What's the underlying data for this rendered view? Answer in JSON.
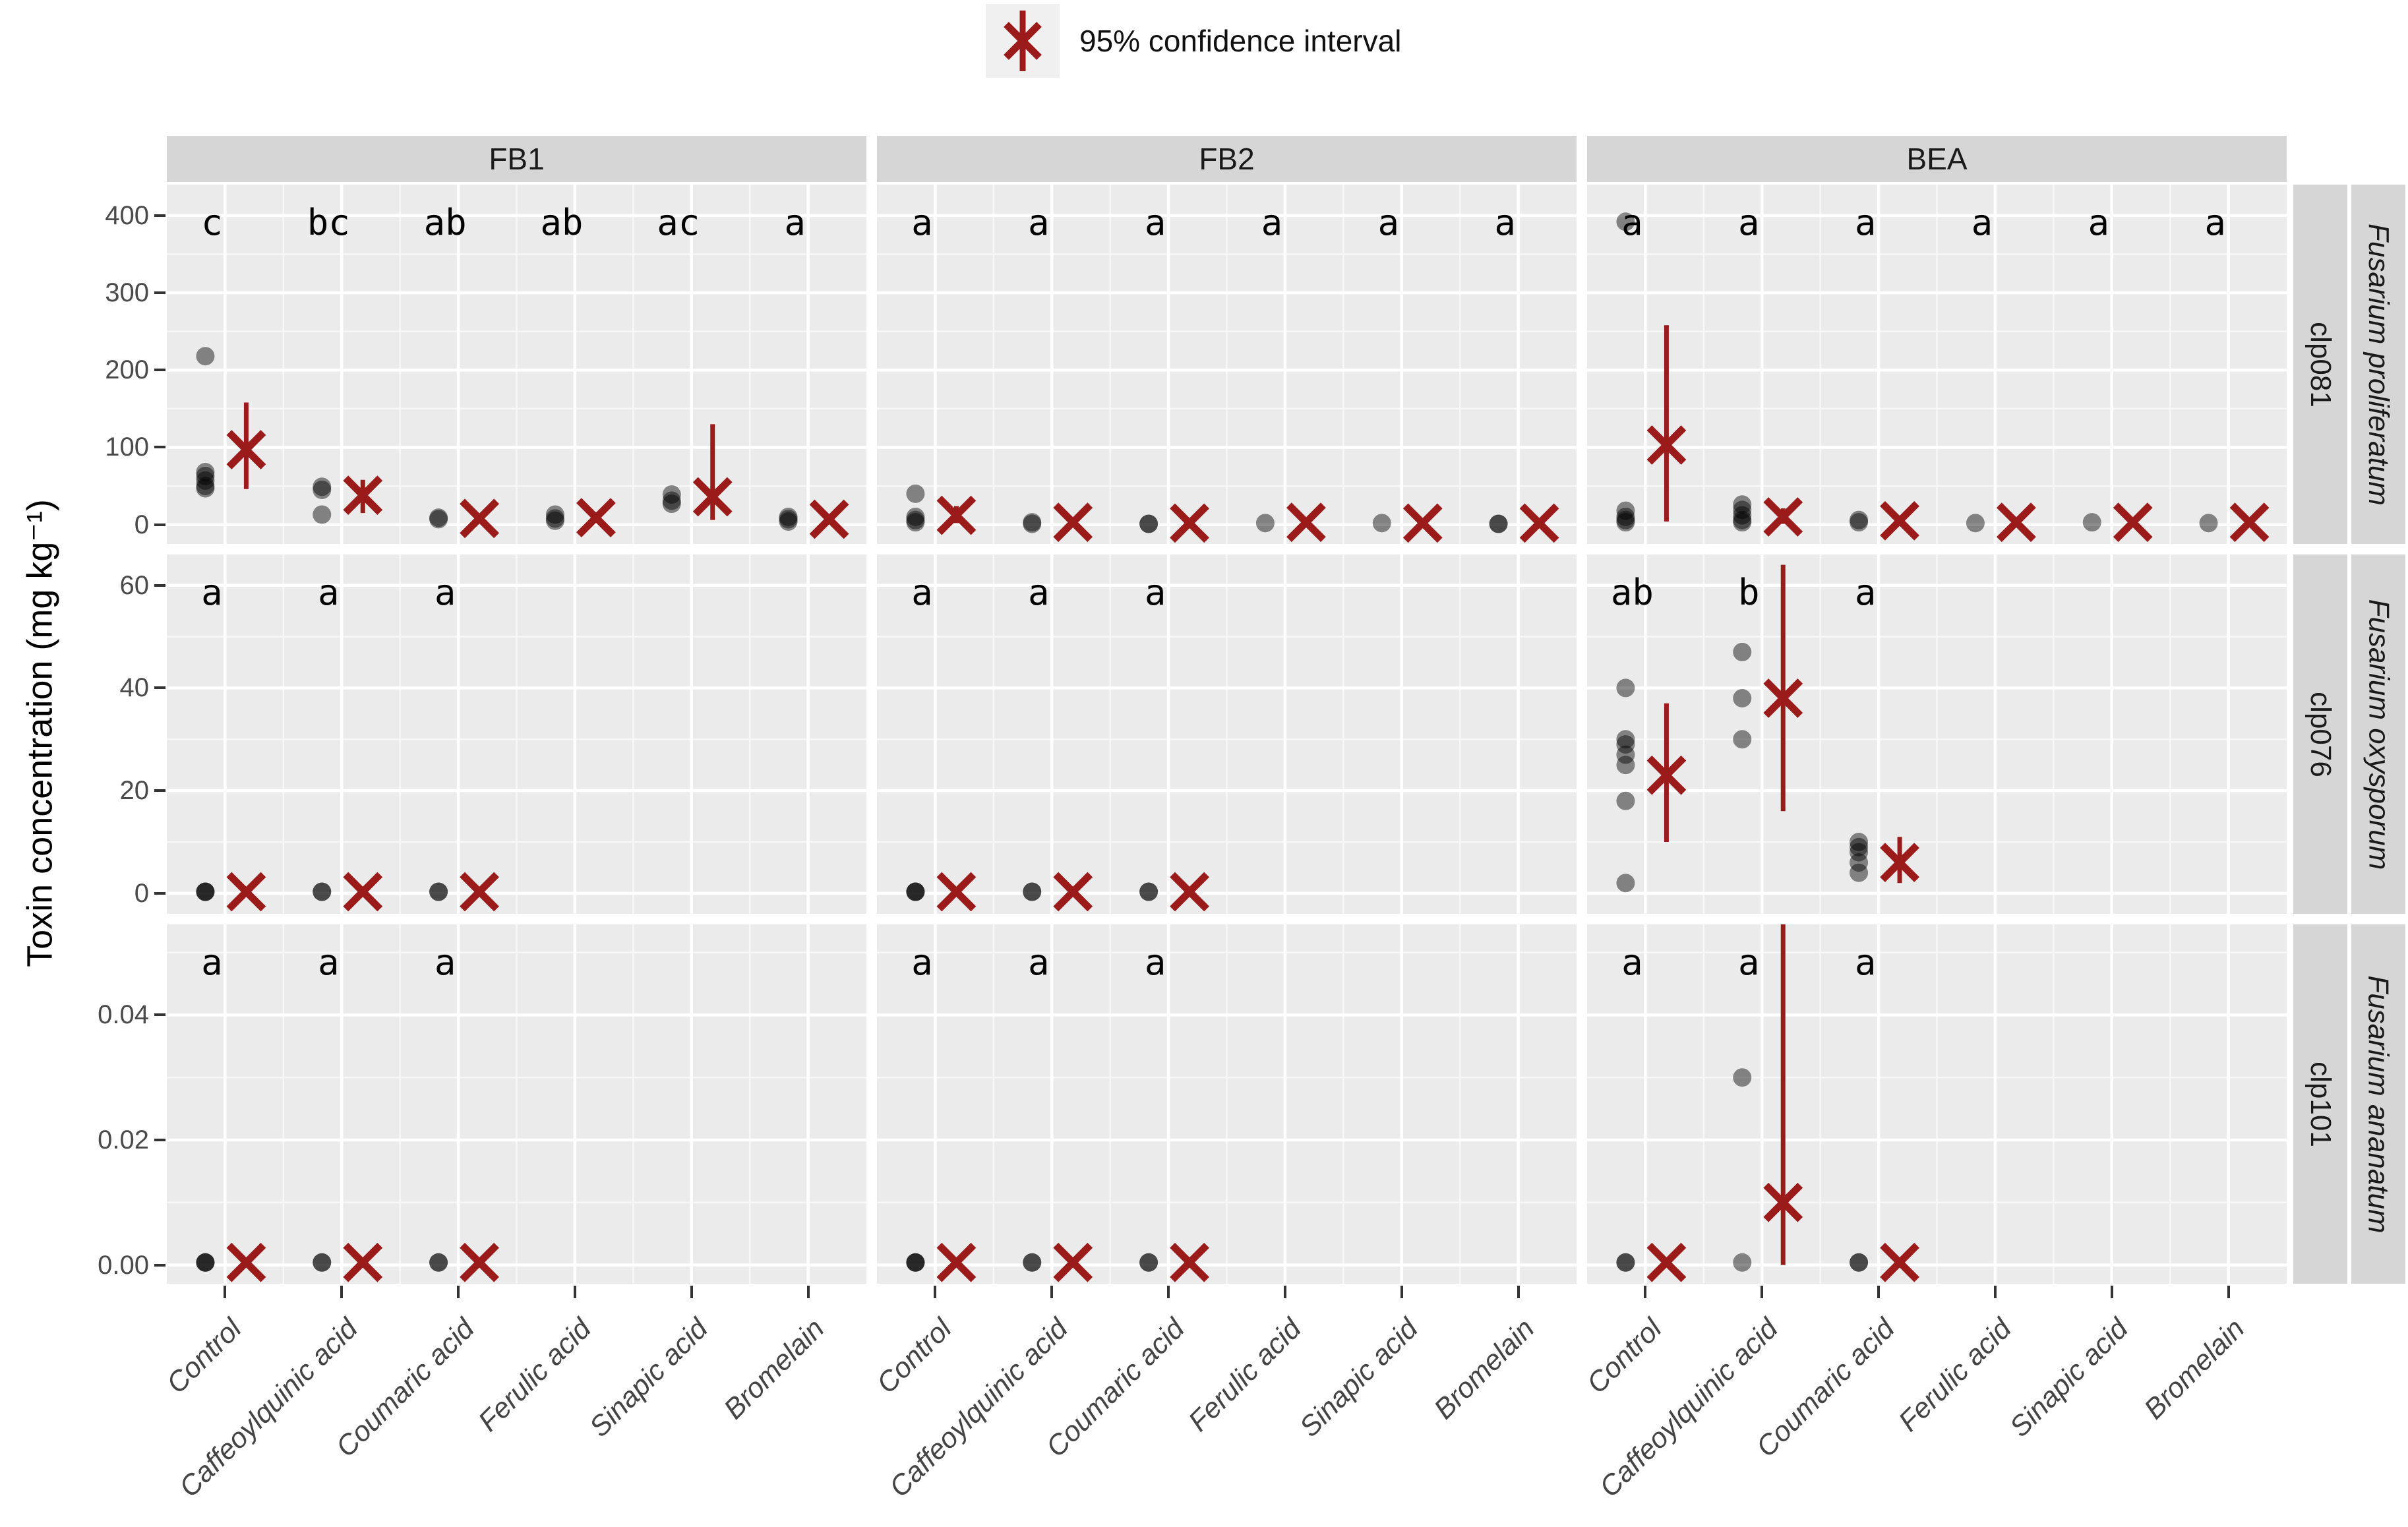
{
  "figure": {
    "legend_label": "95% confidence interval",
    "y_axis_label": "Toxin concentration (mg kg⁻¹)"
  },
  "colors": {
    "panel_bg": "#EBEBEB",
    "strip_bg": "#D6D6D6",
    "grid_major": "#FFFFFF",
    "grid_minor": "#F7F7F7",
    "point": "rgba(0,0,0,0.45)",
    "accent_red": "#9B1B1B",
    "axis_text": "#4A4A4A",
    "legend_key_bg": "#F0F0F0"
  },
  "chart_data": {
    "type": "scatter",
    "title": "",
    "ylabel": "Toxin concentration (mg kg⁻¹)",
    "legend": [
      "95% confidence interval"
    ],
    "legend_position": "top",
    "grid": true,
    "x_categories": [
      "Control",
      "Caffeoylquinic acid",
      "Coumaric acid",
      "Ferulic acid",
      "Sinapic acid",
      "Bromelain"
    ],
    "col_facets": [
      "FB1",
      "FB2",
      "BEA"
    ],
    "row_facets": [
      {
        "strain": "clp081",
        "species": "Fusarium proliferatum",
        "ylim": [
          -25,
          440
        ],
        "ticks": [
          0,
          100,
          200,
          300,
          400
        ],
        "tick_labels": [
          "0",
          "100",
          "200",
          "300",
          "400"
        ],
        "minor": [
          50,
          150,
          250,
          350
        ]
      },
      {
        "strain": "clp076",
        "species": "Fusarium oxysporum",
        "ylim": [
          -4,
          66
        ],
        "ticks": [
          0,
          20,
          40,
          60
        ],
        "tick_labels": [
          "0",
          "20",
          "40",
          "60"
        ],
        "minor": [
          10,
          30,
          50
        ]
      },
      {
        "strain": "clp101",
        "species": "Fusarium ananatum",
        "ylim": [
          -0.003,
          0.0545
        ],
        "ticks": [
          0,
          0.02,
          0.04
        ],
        "tick_labels": [
          "0.00",
          "0.02",
          "0.04"
        ],
        "minor": [
          0.01,
          0.03,
          0.05
        ]
      }
    ],
    "panels": [
      {
        "row": 0,
        "col": 0,
        "groups": [
          {
            "cat": 0,
            "letter": "c",
            "points": [
              218,
              68,
              63,
              57,
              50,
              47
            ],
            "mean": 97,
            "ci": [
              46,
              158
            ]
          },
          {
            "cat": 1,
            "letter": "bc",
            "points": [
              49,
              45,
              13
            ],
            "mean": 38,
            "ci": [
              15,
              58
            ]
          },
          {
            "cat": 2,
            "letter": "ab",
            "points": [
              9,
              7
            ],
            "mean": 8,
            "ci": [
              3,
              14
            ]
          },
          {
            "cat": 3,
            "letter": "ab",
            "points": [
              13,
              8,
              5
            ],
            "mean": 9,
            "ci": [
              3,
              16
            ]
          },
          {
            "cat": 4,
            "letter": "ac",
            "points": [
              39,
              31,
              27
            ],
            "mean": 36,
            "ci": [
              6,
              130
            ]
          },
          {
            "cat": 5,
            "letter": "a",
            "points": [
              10,
              7,
              4
            ],
            "mean": 7,
            "ci": [
              2,
              13
            ]
          }
        ]
      },
      {
        "row": 0,
        "col": 1,
        "groups": [
          {
            "cat": 0,
            "letter": "a",
            "points": [
              40,
              10,
              6,
              3
            ],
            "mean": 12,
            "ci": [
              2,
              24
            ]
          },
          {
            "cat": 1,
            "letter": "a",
            "points": [
              3,
              1
            ],
            "mean": 3,
            "ci": [
              0,
              7
            ]
          },
          {
            "cat": 2,
            "letter": "a",
            "points": [
              1,
              1
            ],
            "mean": 2,
            "ci": [
              0,
              5
            ]
          },
          {
            "cat": 3,
            "letter": "a",
            "points": [
              2
            ],
            "mean": 3,
            "ci": [
              0,
              6
            ]
          },
          {
            "cat": 4,
            "letter": "a",
            "points": [
              2
            ],
            "mean": 2,
            "ci": [
              0,
              5
            ]
          },
          {
            "cat": 5,
            "letter": "a",
            "points": [
              1,
              1
            ],
            "mean": 2,
            "ci": [
              0,
              5
            ]
          }
        ]
      },
      {
        "row": 0,
        "col": 2,
        "groups": [
          {
            "cat": 0,
            "letter": "a",
            "points": [
              392,
              18,
              10,
              6,
              3
            ],
            "mean": 103,
            "ci": [
              4,
              258
            ]
          },
          {
            "cat": 1,
            "letter": "a",
            "points": [
              26,
              19,
              12,
              6,
              3
            ],
            "mean": 10,
            "ci": [
              1,
              21
            ]
          },
          {
            "cat": 2,
            "letter": "a",
            "points": [
              6,
              3
            ],
            "mean": 5,
            "ci": [
              1,
              10
            ]
          },
          {
            "cat": 3,
            "letter": "a",
            "points": [
              2
            ],
            "mean": 3,
            "ci": [
              0,
              6
            ]
          },
          {
            "cat": 4,
            "letter": "a",
            "points": [
              3
            ],
            "mean": 3,
            "ci": [
              0,
              6
            ]
          },
          {
            "cat": 5,
            "letter": "a",
            "points": [
              2
            ],
            "mean": 3,
            "ci": [
              0,
              6
            ]
          }
        ]
      },
      {
        "row": 1,
        "col": 0,
        "groups": [
          {
            "cat": 0,
            "letter": "a",
            "points": [
              0.3,
              0.3,
              0.3
            ],
            "mean": 0.3,
            "ci": null
          },
          {
            "cat": 1,
            "letter": "a",
            "points": [
              0.3,
              0.3
            ],
            "mean": 0.3,
            "ci": null
          },
          {
            "cat": 2,
            "letter": "a",
            "points": [
              0.3,
              0.3
            ],
            "mean": 0.3,
            "ci": null
          }
        ]
      },
      {
        "row": 1,
        "col": 1,
        "groups": [
          {
            "cat": 0,
            "letter": "a",
            "points": [
              0.3,
              0.3,
              0.3
            ],
            "mean": 0.3,
            "ci": null
          },
          {
            "cat": 1,
            "letter": "a",
            "points": [
              0.3,
              0.3
            ],
            "mean": 0.3,
            "ci": null
          },
          {
            "cat": 2,
            "letter": "a",
            "points": [
              0.3,
              0.3
            ],
            "mean": 0.3,
            "ci": null
          }
        ]
      },
      {
        "row": 1,
        "col": 2,
        "groups": [
          {
            "cat": 0,
            "letter": "ab",
            "points": [
              40,
              30,
              29,
              27,
              25,
              18,
              2
            ],
            "mean": 23,
            "ci": [
              10,
              37
            ]
          },
          {
            "cat": 1,
            "letter": "b",
            "points": [
              47,
              38,
              30
            ],
            "mean": 38,
            "ci": [
              16,
              64
            ]
          },
          {
            "cat": 2,
            "letter": "a",
            "points": [
              10,
              9,
              8,
              6,
              4
            ],
            "mean": 6,
            "ci": [
              2,
              11
            ]
          }
        ]
      },
      {
        "row": 2,
        "col": 0,
        "groups": [
          {
            "cat": 0,
            "letter": "a",
            "points": [
              0.0004,
              0.0004,
              0.0004
            ],
            "mean": 0.0004,
            "ci": null
          },
          {
            "cat": 1,
            "letter": "a",
            "points": [
              0.0004,
              0.0004
            ],
            "mean": 0.0004,
            "ci": null
          },
          {
            "cat": 2,
            "letter": "a",
            "points": [
              0.0004,
              0.0004
            ],
            "mean": 0.0004,
            "ci": null
          }
        ]
      },
      {
        "row": 2,
        "col": 1,
        "groups": [
          {
            "cat": 0,
            "letter": "a",
            "points": [
              0.0004,
              0.0004,
              0.0004
            ],
            "mean": 0.0004,
            "ci": null
          },
          {
            "cat": 1,
            "letter": "a",
            "points": [
              0.0004,
              0.0004
            ],
            "mean": 0.0004,
            "ci": null
          },
          {
            "cat": 2,
            "letter": "a",
            "points": [
              0.0004,
              0.0004
            ],
            "mean": 0.0004,
            "ci": null
          }
        ]
      },
      {
        "row": 2,
        "col": 2,
        "groups": [
          {
            "cat": 0,
            "letter": "a",
            "points": [
              0.0004,
              0.0004
            ],
            "mean": 0.0004,
            "ci": null
          },
          {
            "cat": 1,
            "letter": "a",
            "points": [
              0.03,
              0.0004
            ],
            "mean": 0.01,
            "ci": [
              0,
              0.056
            ]
          },
          {
            "cat": 2,
            "letter": "a",
            "points": [
              0.0004,
              0.0004
            ],
            "mean": 0.0004,
            "ci": null
          }
        ]
      }
    ]
  }
}
